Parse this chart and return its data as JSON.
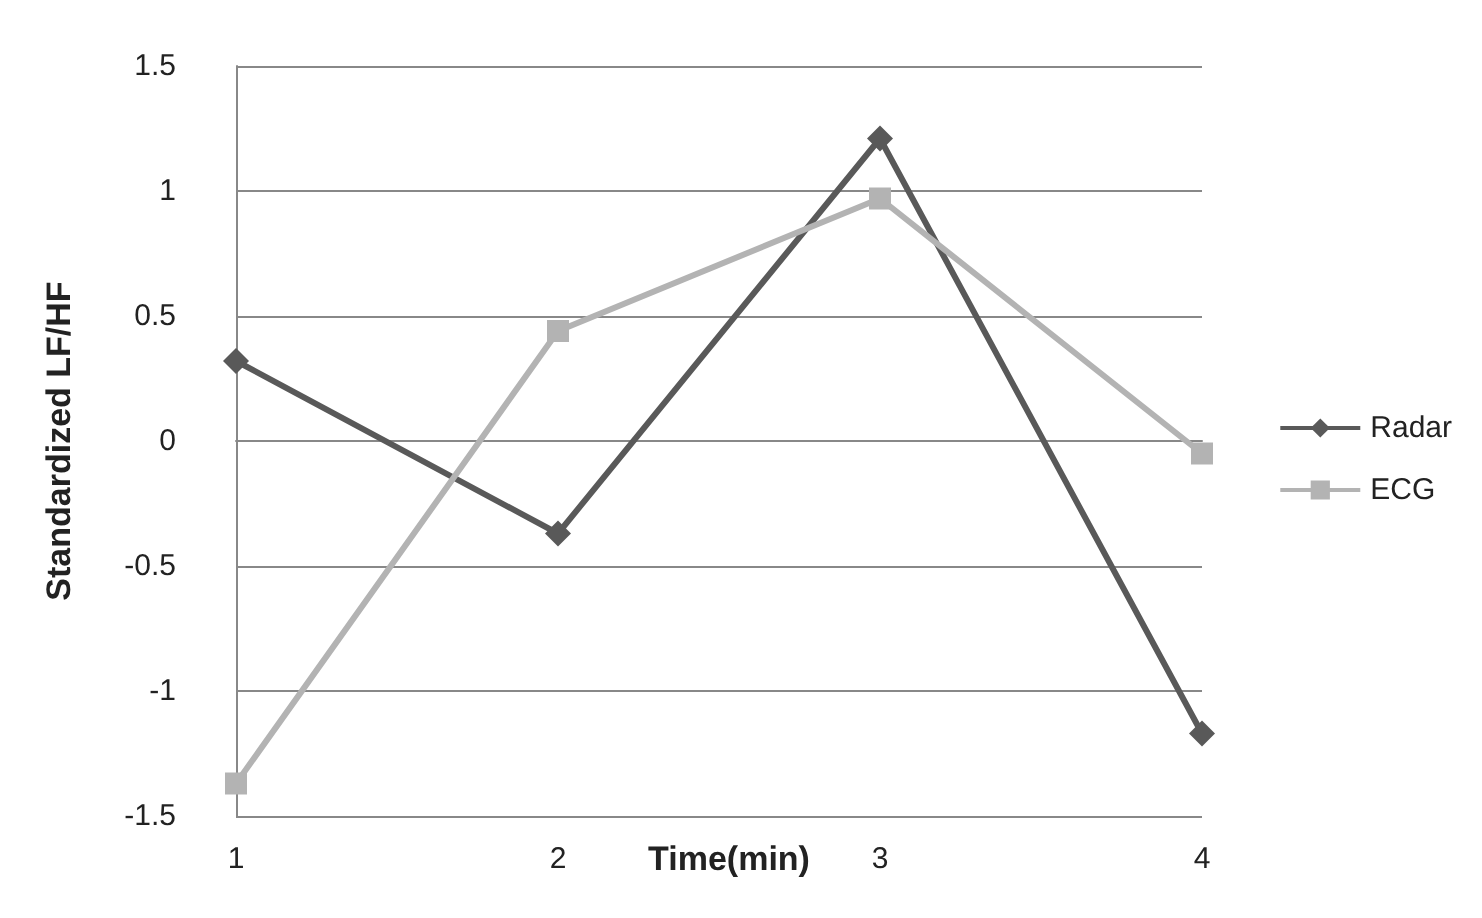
{
  "chart_data": {
    "type": "line",
    "xlabel": "Time(min)",
    "ylabel": "Standardized LF/HF",
    "categories": [
      "1",
      "2",
      "3",
      "4"
    ],
    "series": [
      {
        "name": "Radar",
        "color": "#595959",
        "marker": "diamond",
        "values": [
          0.32,
          -0.37,
          1.21,
          -1.17
        ]
      },
      {
        "name": "ECG",
        "color": "#b3b3b3",
        "marker": "square",
        "values": [
          -1.37,
          0.44,
          0.97,
          -0.05
        ]
      }
    ],
    "ylim": [
      -1.5,
      1.5
    ],
    "yticks": [
      -1.5,
      -1,
      -0.5,
      0,
      0.5,
      1,
      1.5
    ],
    "grid": "y",
    "legend": "right"
  }
}
